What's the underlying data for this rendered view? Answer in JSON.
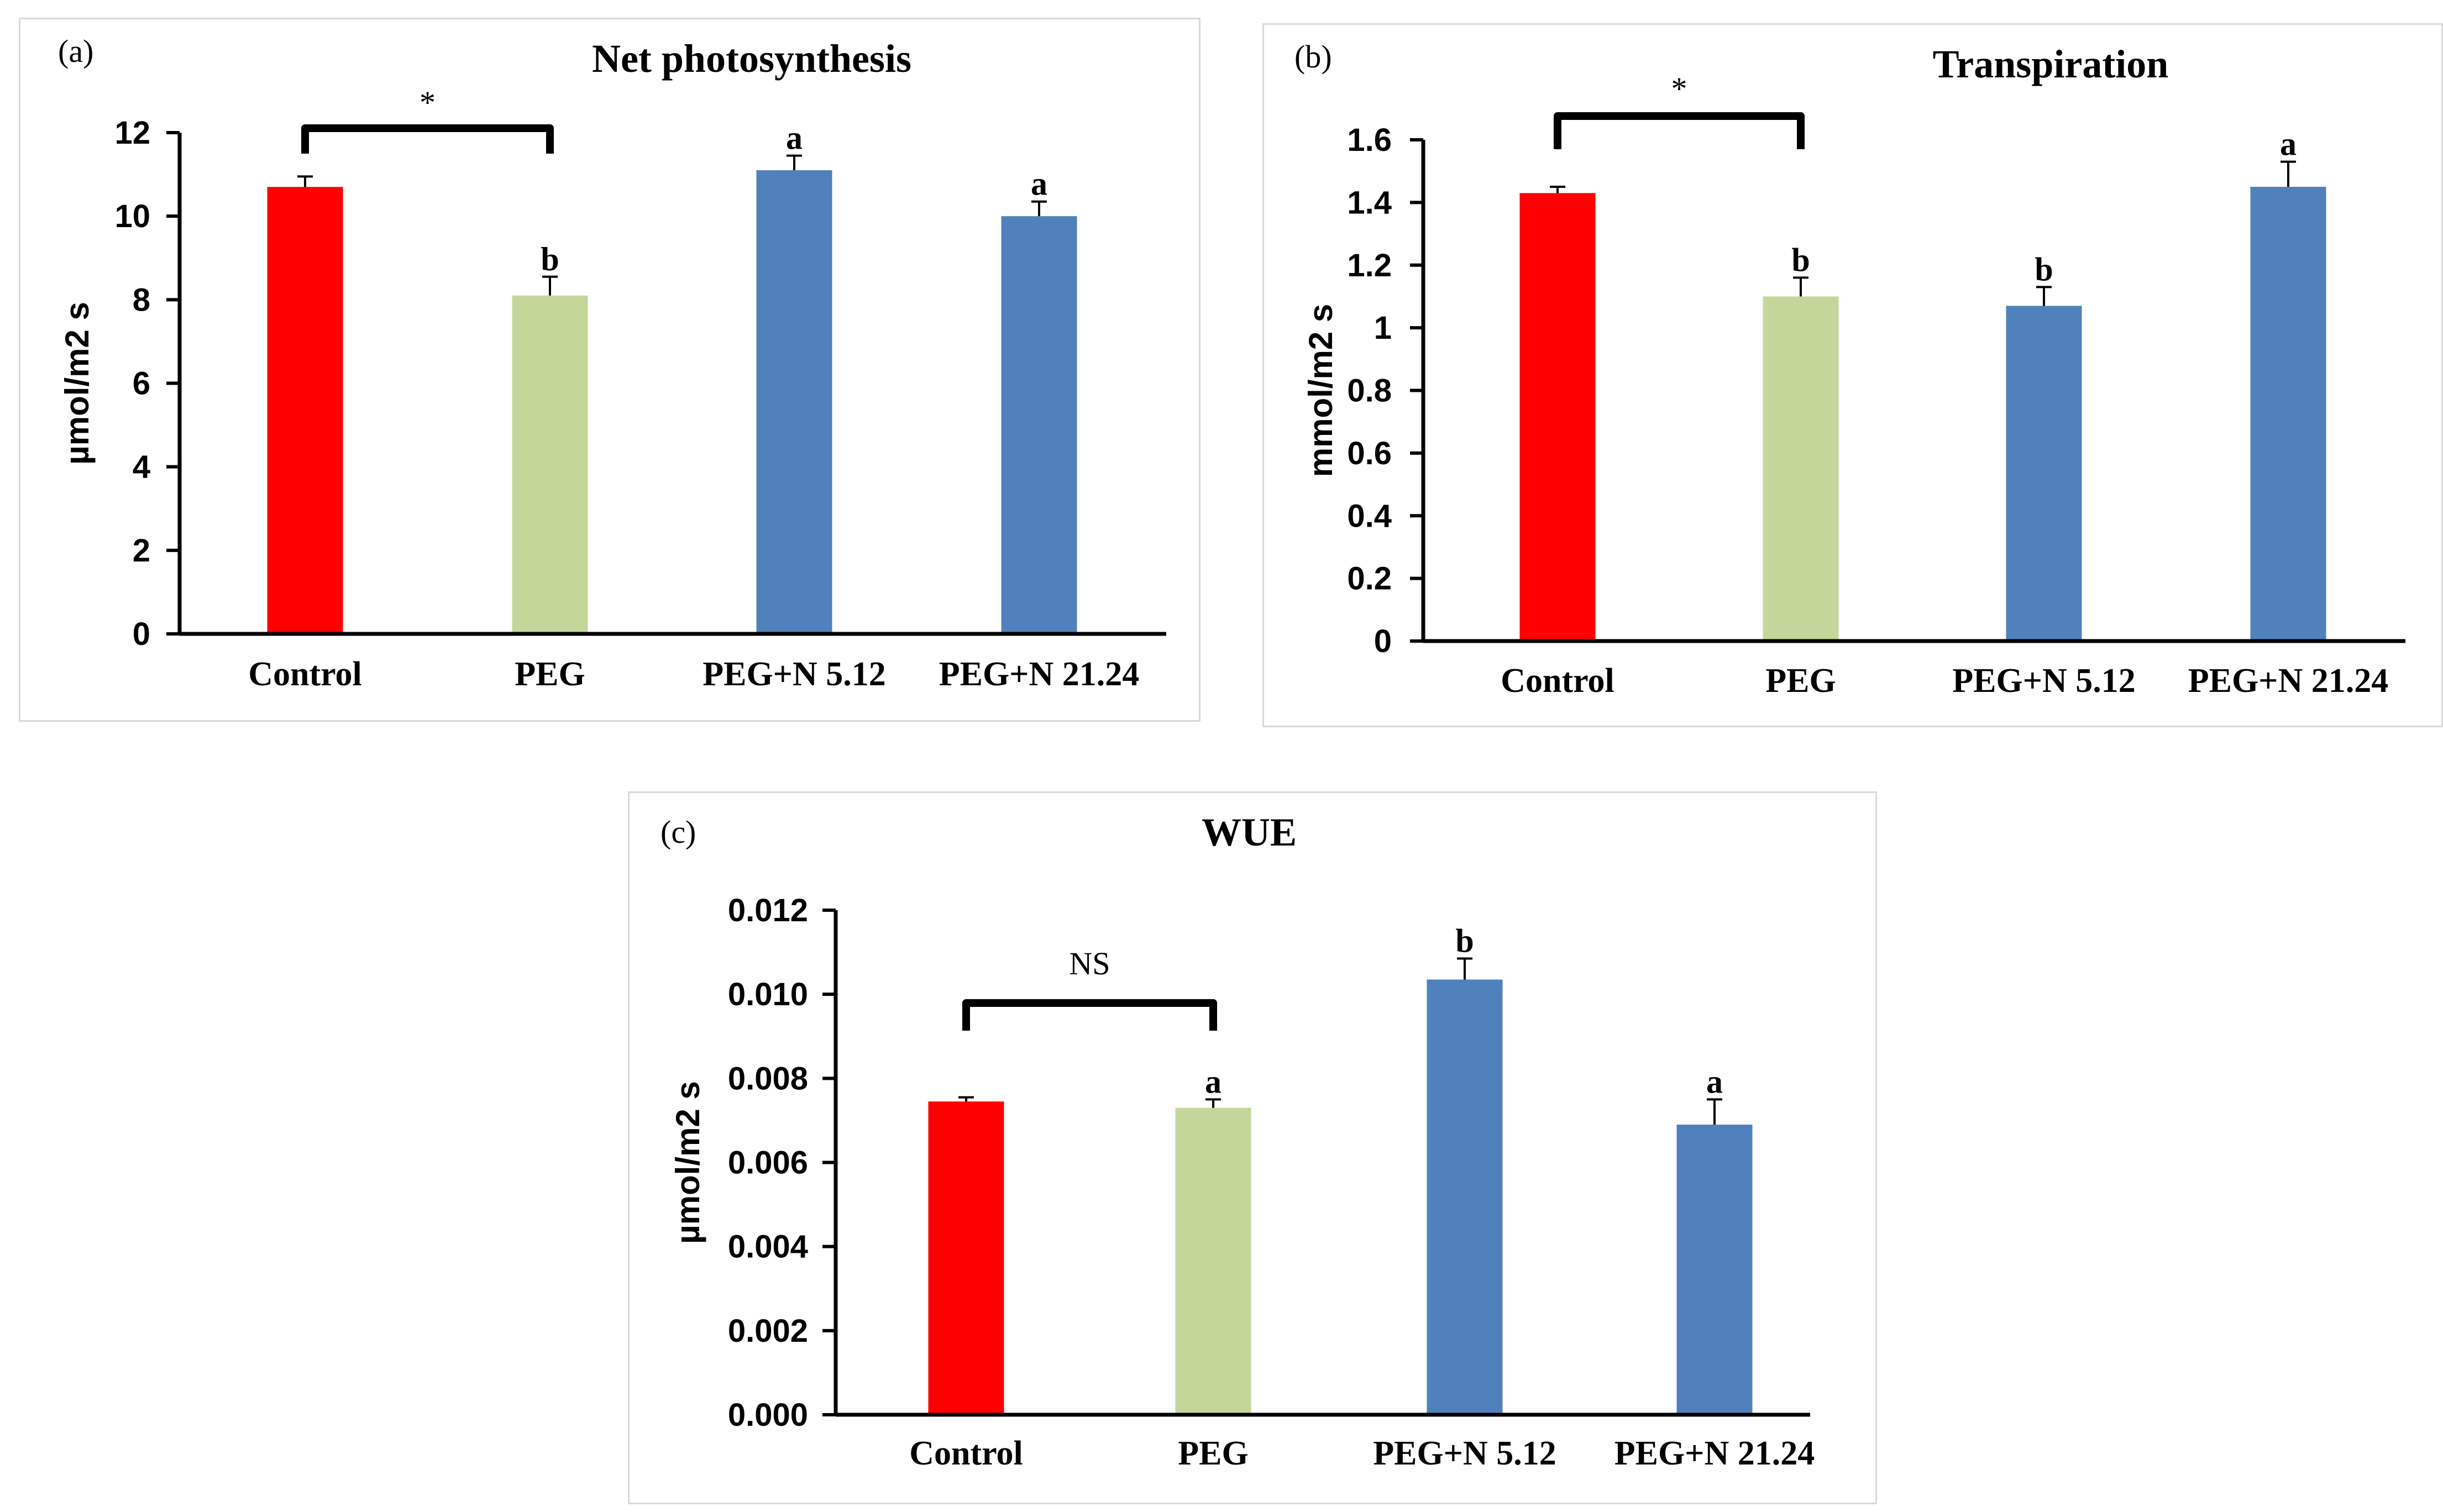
{
  "chart_data": [
    {
      "type": "bar",
      "panel_label": "(a)",
      "title": "Net photosynthesis",
      "ylabel": "µmol/m2 s",
      "categories": [
        "Control",
        "PEG",
        "PEG+N 5.12",
        "PEG+N 21.24"
      ],
      "values": [
        10.7,
        8.1,
        11.1,
        10.0
      ],
      "errors": [
        0.25,
        0.45,
        0.35,
        0.35
      ],
      "letters": [
        "",
        "b",
        "a",
        "a"
      ],
      "colors": [
        "#ff0000",
        "#c4d79b",
        "#4f81bd",
        "#4f81bd"
      ],
      "ylim": [
        0,
        12
      ],
      "yticks": [
        0,
        2,
        4,
        6,
        8,
        10,
        12
      ],
      "ytick_labels": [
        "0",
        "2",
        "4",
        "6",
        "8",
        "10",
        "12"
      ],
      "bracket": {
        "from": 0,
        "to": 1,
        "label": "*"
      }
    },
    {
      "type": "bar",
      "panel_label": "(b)",
      "title": "Transpiration",
      "ylabel": "mmol/m2 s",
      "categories": [
        "Control",
        "PEG",
        "PEG+N 5.12",
        "PEG+N 21.24"
      ],
      "values": [
        1.43,
        1.1,
        1.07,
        1.45
      ],
      "errors": [
        0.02,
        0.06,
        0.06,
        0.08
      ],
      "letters": [
        "",
        "b",
        "b",
        "a"
      ],
      "colors": [
        "#ff0000",
        "#c4d79b",
        "#4f81bd",
        "#4f81bd"
      ],
      "ylim": [
        0,
        1.6
      ],
      "yticks": [
        0,
        0.2,
        0.4,
        0.6,
        0.8,
        1.0,
        1.2,
        1.4,
        1.6
      ],
      "ytick_labels": [
        "0",
        "0.2",
        "0.4",
        "0.6",
        "0.8",
        "1",
        "1.2",
        "1.4",
        "1.6"
      ],
      "bracket": {
        "from": 0,
        "to": 1,
        "label": "*"
      }
    },
    {
      "type": "bar",
      "panel_label": "(c)",
      "title": "WUE",
      "ylabel": "µmol/m2 s",
      "categories": [
        "Control",
        "PEG",
        "PEG+N 5.12",
        "PEG+N 21.24"
      ],
      "values": [
        0.00745,
        0.0073,
        0.01035,
        0.0069
      ],
      "errors": [
        0.0001,
        0.0002,
        0.0005,
        0.0006
      ],
      "letters": [
        "",
        "a",
        "b",
        "a"
      ],
      "colors": [
        "#ff0000",
        "#c4d79b",
        "#4f81bd",
        "#4f81bd"
      ],
      "ylim": [
        0,
        0.012
      ],
      "yticks": [
        0,
        0.002,
        0.004,
        0.006,
        0.008,
        0.01,
        0.012
      ],
      "ytick_labels": [
        "0.000",
        "0.002",
        "0.004",
        "0.006",
        "0.008",
        "0.010",
        "0.012"
      ],
      "bracket": {
        "from": 0,
        "to": 1,
        "label": "NS"
      }
    }
  ]
}
